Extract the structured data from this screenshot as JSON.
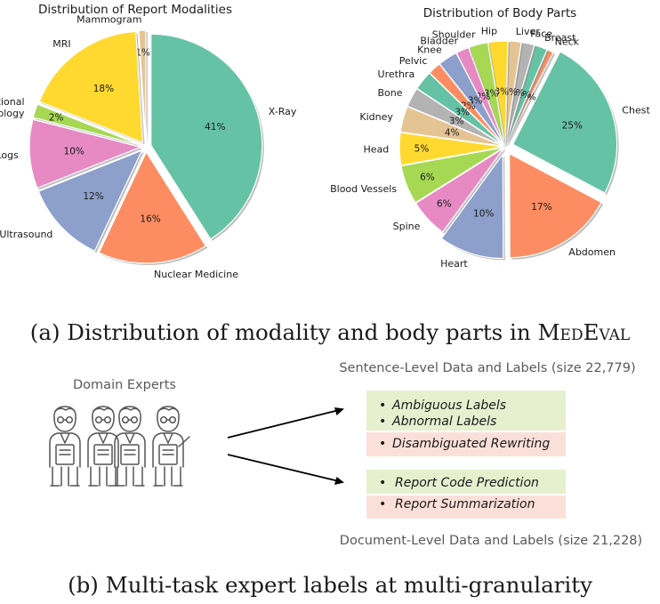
{
  "chart_data": [
    {
      "type": "pie",
      "title": "Distribution of Report Modalities",
      "unit": "%",
      "slices": [
        {
          "label": "Mammogram",
          "value": 1,
          "pct_text": "1%",
          "color": "#e5c494"
        },
        {
          "label": "MRI",
          "value": 18,
          "pct_text": "18%",
          "color": "#ffd92f"
        },
        {
          "label": "Interventional Radiology",
          "value": 2,
          "pct_text": "2%",
          "color": "#a6d854"
        },
        {
          "label": "Logs",
          "value": 10,
          "pct_text": "10%",
          "color": "#e78ac3"
        },
        {
          "label": "Ultrasound",
          "value": 12,
          "pct_text": "12%",
          "color": "#8da0cb"
        },
        {
          "label": "Nuclear Medicine",
          "value": 16,
          "pct_text": "16%",
          "color": "#fc8d62"
        },
        {
          "label": "X-Ray",
          "value": 41,
          "pct_text": "41%",
          "color": "#66c2a5"
        }
      ]
    },
    {
      "type": "pie",
      "title": "Distribution of Body Parts",
      "unit": "%",
      "slices": [
        {
          "label": "Neck",
          "value": 1,
          "pct_text": "1%",
          "color": "#fc8d62"
        },
        {
          "label": "Breast",
          "value": 2,
          "pct_text": "2%",
          "color": "#66c2a5"
        },
        {
          "label": "Face",
          "value": 2,
          "pct_text": "2%",
          "color": "#b3b3b3"
        },
        {
          "label": "Liver",
          "value": 2,
          "pct_text": "2%",
          "color": "#e5c494"
        },
        {
          "label": "Hip",
          "value": 3,
          "pct_text": "3%",
          "color": "#ffd92f"
        },
        {
          "label": "Shoulder",
          "value": 3,
          "pct_text": "3%",
          "color": "#a6d854"
        },
        {
          "label": "Bladder",
          "value": 2,
          "pct_text": "2%",
          "color": "#e78ac3"
        },
        {
          "label": "Knee",
          "value": 3,
          "pct_text": "3%",
          "color": "#8da0cb"
        },
        {
          "label": "Pelvic",
          "value": 2,
          "pct_text": "2%",
          "color": "#fc8d62"
        },
        {
          "label": "Urethra",
          "value": 3,
          "pct_text": "3%",
          "color": "#66c2a5"
        },
        {
          "label": "Bone",
          "value": 3,
          "pct_text": "3%",
          "color": "#b3b3b3"
        },
        {
          "label": "Kidney",
          "value": 4,
          "pct_text": "4%",
          "color": "#e5c494"
        },
        {
          "label": "Head",
          "value": 5,
          "pct_text": "5%",
          "color": "#ffd92f"
        },
        {
          "label": "Blood Vessels",
          "value": 6,
          "pct_text": "6%",
          "color": "#a6d854"
        },
        {
          "label": "Spine",
          "value": 6,
          "pct_text": "6%",
          "color": "#e78ac3"
        },
        {
          "label": "Heart",
          "value": 10,
          "pct_text": "10%",
          "color": "#8da0cb"
        },
        {
          "label": "Abdomen",
          "value": 17,
          "pct_text": "17%",
          "color": "#fc8d62"
        },
        {
          "label": "Chest",
          "value": 25,
          "pct_text": "25%",
          "color": "#66c2a5"
        }
      ]
    }
  ],
  "caption_a": {
    "prefix": "(a) Distribution of modality and body parts in M",
    "sc1": "ED",
    "mid": "E",
    "sc2": "VAL"
  },
  "caption_b": "(b) Multi-task expert labels at multi-granularity",
  "diagram": {
    "experts_label": "Domain Experts",
    "sentence_heading": "Sentence-Level Data and Labels (size 22,779)",
    "document_heading": "Document-Level Data and Labels (size 21,228)",
    "sentence_tasks": [
      "Ambiguous Labels",
      "Abnormal Labels"
    ],
    "sentence_rewrite": "Disambiguated Rewriting",
    "document_task_green": "Report Code Prediction",
    "document_task_red": "Report Summarization",
    "bullet": "•",
    "colors": {
      "green_box": "#e6f0cf",
      "red_box": "#fbe0d9",
      "figure_stroke": "#555555"
    }
  }
}
